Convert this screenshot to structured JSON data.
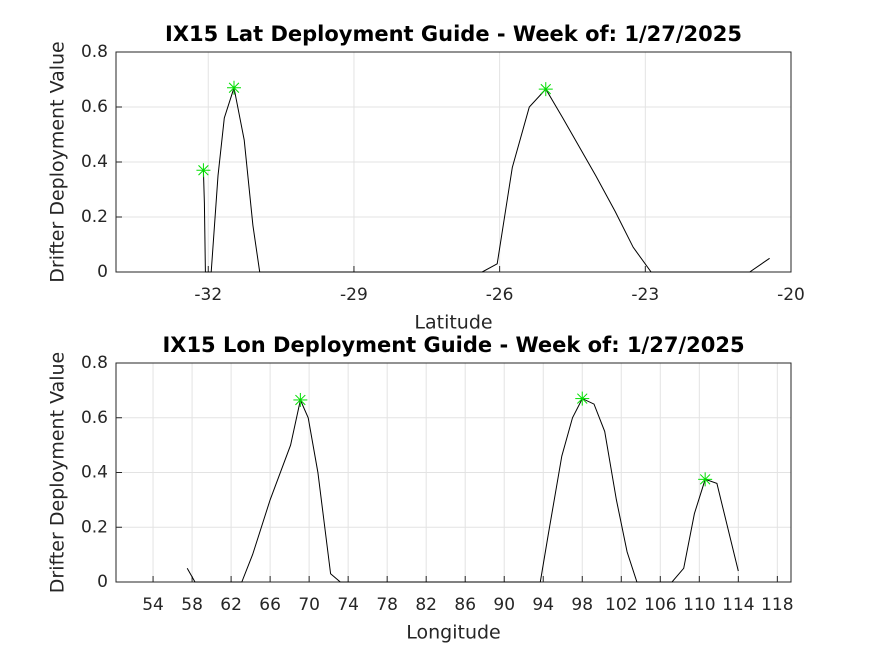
{
  "chart_data": [
    {
      "type": "line",
      "title": "IX15 Lat Deployment Guide - Week of: 1/27/2025",
      "xlabel": "Latitude",
      "ylabel": "Drifter Deployment Value",
      "xlim": [
        -33.9,
        -20
      ],
      "xticks": [
        -32,
        -29,
        -26,
        -23,
        -20
      ],
      "ylim": [
        0,
        0.8
      ],
      "yticks": [
        0,
        0.2,
        0.4,
        0.6,
        0.8
      ],
      "grid": true,
      "series": [
        {
          "color": "#000000",
          "marker": "none",
          "x": [
            -32.1,
            -32.08,
            -32.06,
            -31.94,
            -31.8,
            -31.67,
            -31.47,
            -31.26,
            -31.08,
            -30.94,
            -26.36,
            -26.05,
            -25.74,
            -25.39,
            -25.05,
            -24.7,
            -24.02,
            -23.62,
            -23.25,
            -22.88,
            -20.85,
            -20.44
          ],
          "values": [
            0.37,
            0.25,
            0,
            0,
            0.35,
            0.56,
            0.67,
            0.48,
            0.17,
            0,
            0,
            0.03,
            0.38,
            0.6,
            0.665,
            0.56,
            0.35,
            0.22,
            0.09,
            0,
            0,
            0.05
          ]
        },
        {
          "color": "#00dd00",
          "marker": "asterisk",
          "x": [
            -32.1,
            -31.47,
            -25.05
          ],
          "values": [
            0.37,
            0.67,
            0.665
          ]
        }
      ]
    },
    {
      "type": "line",
      "title": "IX15 Lon Deployment Guide - Week of: 1/27/2025",
      "xlabel": "Longitude",
      "ylabel": "Drifter Deployment Value",
      "xlim": [
        50.2,
        119.4
      ],
      "xticks": [
        54,
        58,
        62,
        66,
        70,
        74,
        78,
        82,
        86,
        90,
        94,
        98,
        102,
        106,
        110,
        114,
        118
      ],
      "ylim": [
        0,
        0.8
      ],
      "yticks": [
        0,
        0.2,
        0.4,
        0.6,
        0.8
      ],
      "grid": true,
      "series": [
        {
          "color": "#000000",
          "marker": "none",
          "x": [
            57.5,
            58.3,
            63.1,
            64.2,
            66.0,
            68.1,
            69.1,
            69.9,
            70.9,
            72.2,
            73.2,
            93.7,
            94.5,
            95.9,
            97.0,
            98.0,
            99.2,
            100.3,
            101.5,
            102.6,
            103.6,
            107.2,
            108.4,
            109.5,
            110.6,
            111.8,
            114.0
          ],
          "values": [
            0.05,
            0,
            0,
            0.1,
            0.3,
            0.5,
            0.665,
            0.6,
            0.4,
            0.03,
            0,
            0,
            0.17,
            0.46,
            0.6,
            0.67,
            0.65,
            0.55,
            0.3,
            0.11,
            0,
            0,
            0.05,
            0.25,
            0.375,
            0.36,
            0.04
          ]
        },
        {
          "color": "#00dd00",
          "marker": "asterisk",
          "x": [
            69.1,
            98.0,
            110.6
          ],
          "values": [
            0.665,
            0.67,
            0.375
          ]
        }
      ]
    }
  ]
}
